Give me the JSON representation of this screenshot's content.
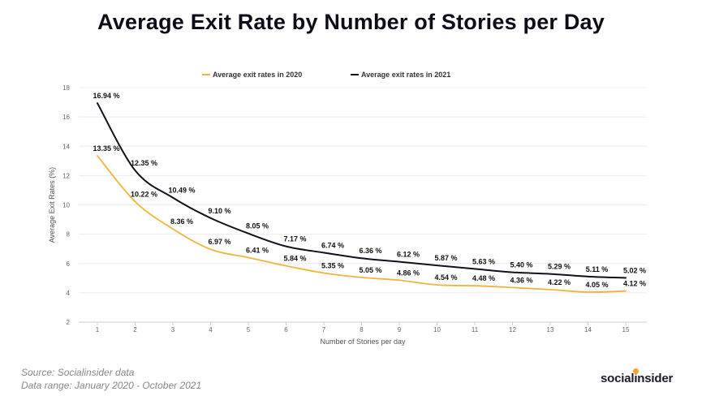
{
  "chart_data": {
    "type": "line",
    "title": "Average Exit Rate by Number of Stories per Day",
    "xlabel": "Number of Stories per day",
    "ylabel": "Average Exit Rates (%)",
    "x": [
      1,
      2,
      3,
      4,
      5,
      6,
      7,
      8,
      9,
      10,
      11,
      12,
      13,
      14,
      15
    ],
    "ylim": [
      2,
      18
    ],
    "yticks": [
      2,
      4,
      6,
      8,
      10,
      12,
      14,
      16,
      18
    ],
    "grid": true,
    "legend_position": "top",
    "series": [
      {
        "name": "Average exit rates in 2020",
        "color": "#f0b43c",
        "values": [
          13.35,
          10.22,
          8.36,
          6.97,
          6.41,
          5.84,
          5.35,
          5.05,
          4.86,
          4.54,
          4.48,
          4.36,
          4.22,
          4.05,
          4.12
        ],
        "labels": [
          "13.35 %",
          "10.22 %",
          "8.36 %",
          "6.97 %",
          "6.41 %",
          "5.84 %",
          "5.35 %",
          "5.05 %",
          "4.86 %",
          "4.54 %",
          "4.48 %",
          "4.36 %",
          "4.22 %",
          "4.05 %",
          "4.12 %"
        ]
      },
      {
        "name": "Average exit rates in 2021",
        "color": "#11111e",
        "values": [
          16.94,
          12.35,
          10.49,
          9.1,
          8.05,
          7.17,
          6.74,
          6.36,
          6.12,
          5.87,
          5.63,
          5.4,
          5.29,
          5.11,
          5.02
        ],
        "labels": [
          "16.94 %",
          "12.35 %",
          "10.49 %",
          "9.10 %",
          "8.05 %",
          "7.17 %",
          "6.74 %",
          "6.36 %",
          "6.12 %",
          "5.87 %",
          "5.63 %",
          "5.40 %",
          "5.29 %",
          "5.11 %",
          "5.02 %"
        ]
      }
    ]
  },
  "footer": {
    "source": "Source: Socialinsider data",
    "range": "Data range: January 2020 - October 2021"
  },
  "logo": {
    "prefix": "social",
    "dot_letter": "i",
    "suffix": "nsider"
  }
}
